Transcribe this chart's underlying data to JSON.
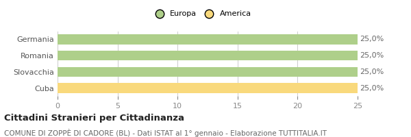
{
  "categories": [
    "Germania",
    "Romania",
    "Slovacchia",
    "Cuba"
  ],
  "values": [
    25,
    25,
    25,
    25
  ],
  "colors": [
    "#aecf8a",
    "#aecf8a",
    "#aecf8a",
    "#f9d97c"
  ],
  "bar_labels": [
    "25,0%",
    "25,0%",
    "25,0%",
    "25,0%"
  ],
  "xlim": [
    0,
    25
  ],
  "xticks": [
    0,
    5,
    10,
    15,
    20,
    25
  ],
  "legend_entries": [
    {
      "label": "Europa",
      "color": "#aecf8a"
    },
    {
      "label": "America",
      "color": "#f9d97c"
    }
  ],
  "title": "Cittadini Stranieri per Cittadinanza",
  "subtitle": "COMUNE DI ZOPPÈ DI CADORE (BL) - Dati ISTAT al 1° gennaio - Elaborazione TUTTITALIA.IT",
  "background_color": "#ffffff",
  "grid_color": "#cccccc",
  "label_fontsize": 8,
  "bar_label_fontsize": 8,
  "title_fontsize": 9.5,
  "subtitle_fontsize": 7.5
}
